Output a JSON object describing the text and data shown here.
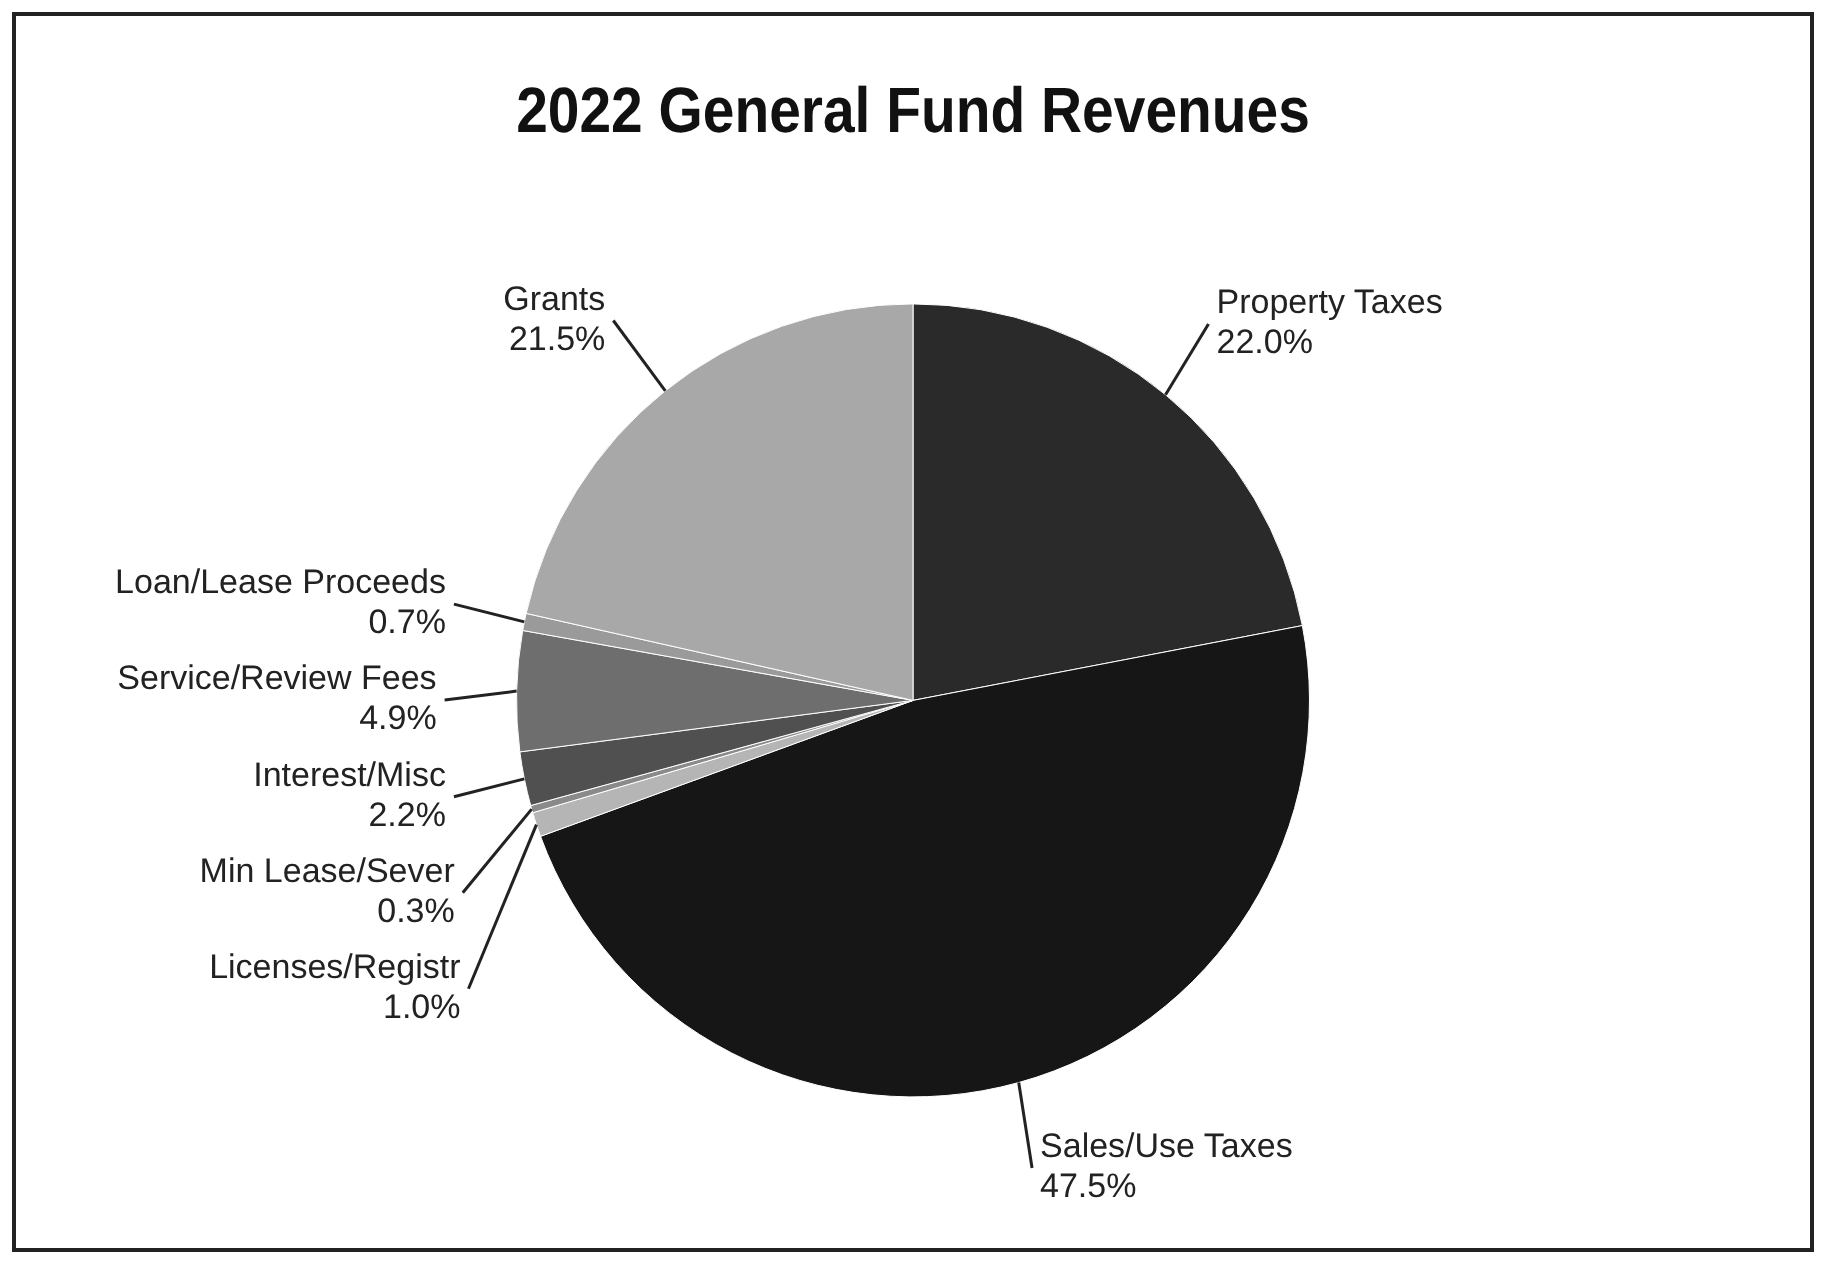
{
  "chart_data": {
    "type": "pie",
    "title": "2022 General Fund Revenues",
    "categories": [
      "Property Taxes",
      "Sales/Use Taxes",
      "Licenses/Registr",
      "Min Lease/Sever",
      "Interest/Misc",
      "Service/Review Fees",
      "Loan/Lease Proceeds",
      "Grants"
    ],
    "values": [
      22.0,
      47.5,
      1.0,
      0.3,
      2.2,
      4.9,
      0.7,
      21.5
    ],
    "value_labels": [
      "22.0%",
      "47.5%",
      "1.0%",
      "0.3%",
      "2.2%",
      "4.9%",
      "0.7%",
      "21.5%"
    ],
    "colors": [
      "#2a2a2a",
      "#161616",
      "#b5b5b5",
      "#8a8a8a",
      "#505050",
      "#6e6e6e",
      "#9a9a9a",
      "#a8a8a8"
    ],
    "legend": false
  }
}
